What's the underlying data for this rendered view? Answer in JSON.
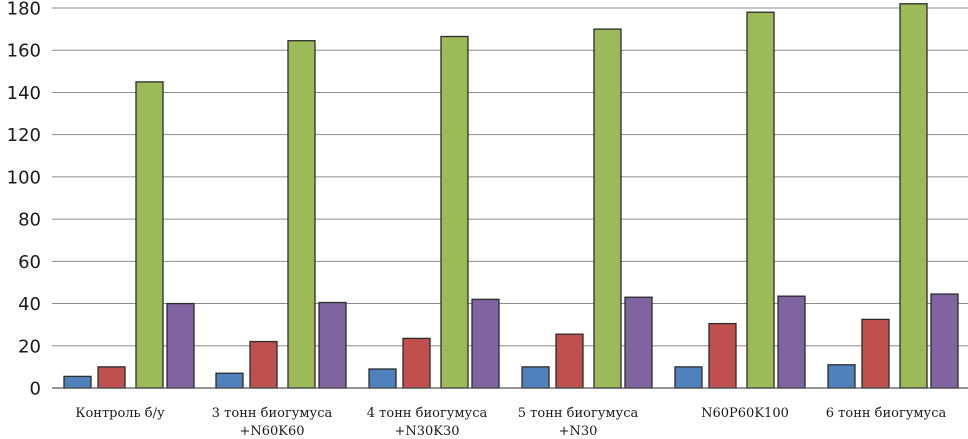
{
  "chart_data": {
    "type": "bar",
    "title": "",
    "xlabel": "",
    "ylabel": "",
    "ylim": [
      0,
      180
    ],
    "yticks": [
      0,
      20,
      40,
      60,
      80,
      100,
      120,
      140,
      160,
      180
    ],
    "grid": true,
    "legend": "none",
    "categories": [
      [
        "Контроль б/у"
      ],
      [
        "3 тонн биогумуса",
        "+N60K60"
      ],
      [
        "4 тонн биогумуса",
        "+N30K30"
      ],
      [
        "5 тонн биогумуса",
        "+N30"
      ],
      [
        "N60P60K100"
      ],
      [
        "6 тонн биогумуса"
      ]
    ],
    "series": [
      {
        "color": "#4f81bd",
        "values": [
          5.5,
          7,
          9,
          10,
          10,
          11
        ]
      },
      {
        "color": "#c0504d",
        "values": [
          10,
          22,
          23.5,
          25.5,
          30.5,
          32.5
        ]
      },
      {
        "color": "#9bbb59",
        "values": [
          145,
          164.5,
          166.5,
          170,
          178,
          182
        ]
      },
      {
        "color": "#8064a2",
        "values": [
          40,
          40.5,
          42,
          43,
          43.5,
          44.5
        ]
      }
    ]
  }
}
